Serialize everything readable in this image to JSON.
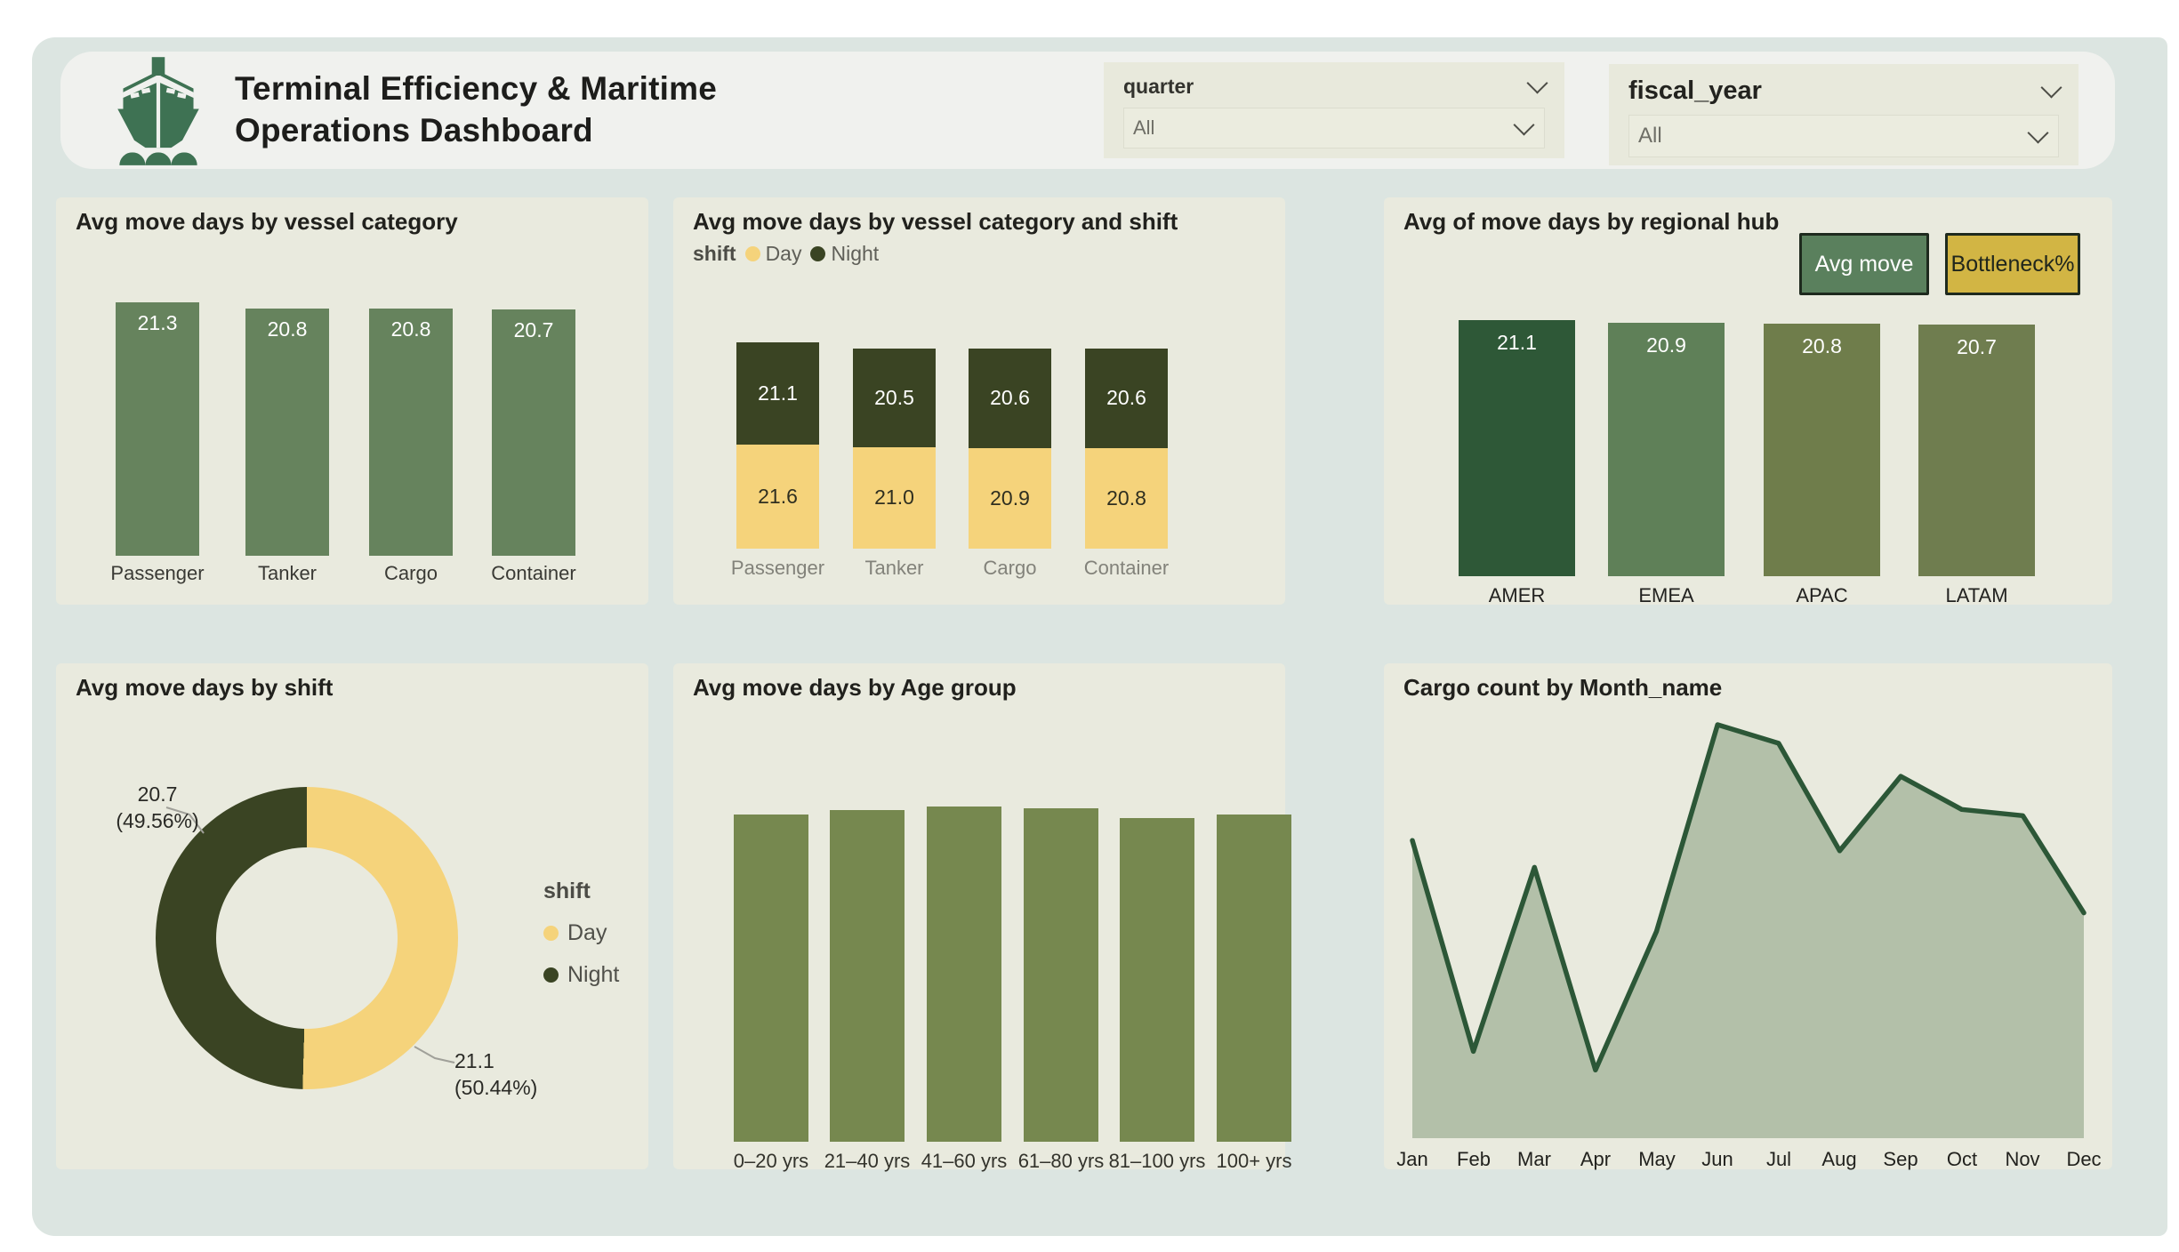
{
  "header": {
    "title_line1": "Terminal Efficiency & Maritime",
    "title_line2": "Operations Dashboard",
    "logo": "ship-icon",
    "slicers": [
      {
        "label": "quarter",
        "value": "All"
      },
      {
        "label": "fiscal_year",
        "value": "All"
      }
    ]
  },
  "theme": {
    "page_bg": "#ffffff",
    "canvas_bg": "#dce5e1",
    "header_bg": "#f0f1ee",
    "slicer_bg": "#e8e9dc",
    "card_bg": "#e9eade",
    "logo_green": "#3e7253"
  },
  "chart_data": [
    {
      "type": "bar",
      "title": "Avg move days by vessel category",
      "categories": [
        "Passenger",
        "Tanker",
        "Cargo",
        "Container"
      ],
      "values": [
        21.3,
        20.8,
        20.8,
        20.7
      ],
      "bar_color": "#66835d",
      "value_label_color": "#ffffff",
      "axis_label_color": "#3a3a35"
    },
    {
      "type": "stacked-bar",
      "title": "Avg move days by vessel category and shift",
      "legend": {
        "title": "shift",
        "entries": [
          {
            "label": "Day",
            "color": "#f5d37b"
          },
          {
            "label": "Night",
            "color": "#3a4423"
          }
        ]
      },
      "categories": [
        "Passenger",
        "Tanker",
        "Cargo",
        "Container"
      ],
      "series": [
        {
          "name": "Day",
          "color": "#f5d37b",
          "label_color": "#2f2f20",
          "values": [
            21.6,
            21.0,
            20.9,
            20.8
          ]
        },
        {
          "name": "Night",
          "color": "#3a4423",
          "label_color": "#ffffff",
          "values": [
            21.1,
            20.5,
            20.6,
            20.6
          ]
        }
      ],
      "axis_label_color": "#82827a"
    },
    {
      "type": "bar",
      "title": "Avg of move days by regional hub",
      "buttons": [
        {
          "label": "Avg move",
          "bg": "#5a805d",
          "text": "#ffffff",
          "border": "#1e2a1e"
        },
        {
          "label": "Bottleneck%",
          "bg": "#d2b544",
          "text": "#20261c",
          "border": "#1e2a1e"
        }
      ],
      "categories": [
        "AMER",
        "EMEA",
        "APAC",
        "LATAM"
      ],
      "values": [
        21.1,
        20.9,
        20.8,
        20.7
      ],
      "bar_colors": [
        "#2e5837",
        "#5f8058",
        "#6f7d4b",
        "#6f7d4f"
      ],
      "value_label_color": "#ffffff",
      "axis_label_color": "#222220"
    },
    {
      "type": "donut",
      "title": "Avg move days by shift",
      "legend_title": "shift",
      "slices": [
        {
          "label": "Day",
          "value": 21.1,
          "percent": 50.44,
          "color": "#f5d37b"
        },
        {
          "label": "Night",
          "value": 20.7,
          "percent": 49.56,
          "color": "#3a4423"
        }
      ],
      "callouts": [
        {
          "line1": "20.7",
          "line2": "(49.56%)"
        },
        {
          "line1": "21.1",
          "line2": "(50.44%)"
        }
      ]
    },
    {
      "type": "bar",
      "title": "Avg move days by Age group",
      "categories": [
        "0–20 yrs",
        "21–40 yrs",
        "41–60 yrs",
        "61–80 yrs",
        "81–100 yrs",
        "100+ yrs"
      ],
      "relative_heights": [
        0.975,
        0.99,
        1.0,
        0.995,
        0.965,
        0.975
      ],
      "value_labels_shown": false,
      "bar_color": "#76884f",
      "axis_label_color": "#33332c"
    },
    {
      "type": "area",
      "title": "Cargo count by Month_name",
      "x": [
        "Jan",
        "Feb",
        "Mar",
        "Apr",
        "May",
        "Jun",
        "Jul",
        "Aug",
        "Sep",
        "Oct",
        "Nov",
        "Dec"
      ],
      "relative_values": [
        0.72,
        0.21,
        0.655,
        0.165,
        0.5,
        1.0,
        0.955,
        0.695,
        0.875,
        0.795,
        0.78,
        0.545
      ],
      "line_color": "#2c5737",
      "fill_color": "#b3c0a9",
      "axis_label_color": "#22221e"
    }
  ]
}
